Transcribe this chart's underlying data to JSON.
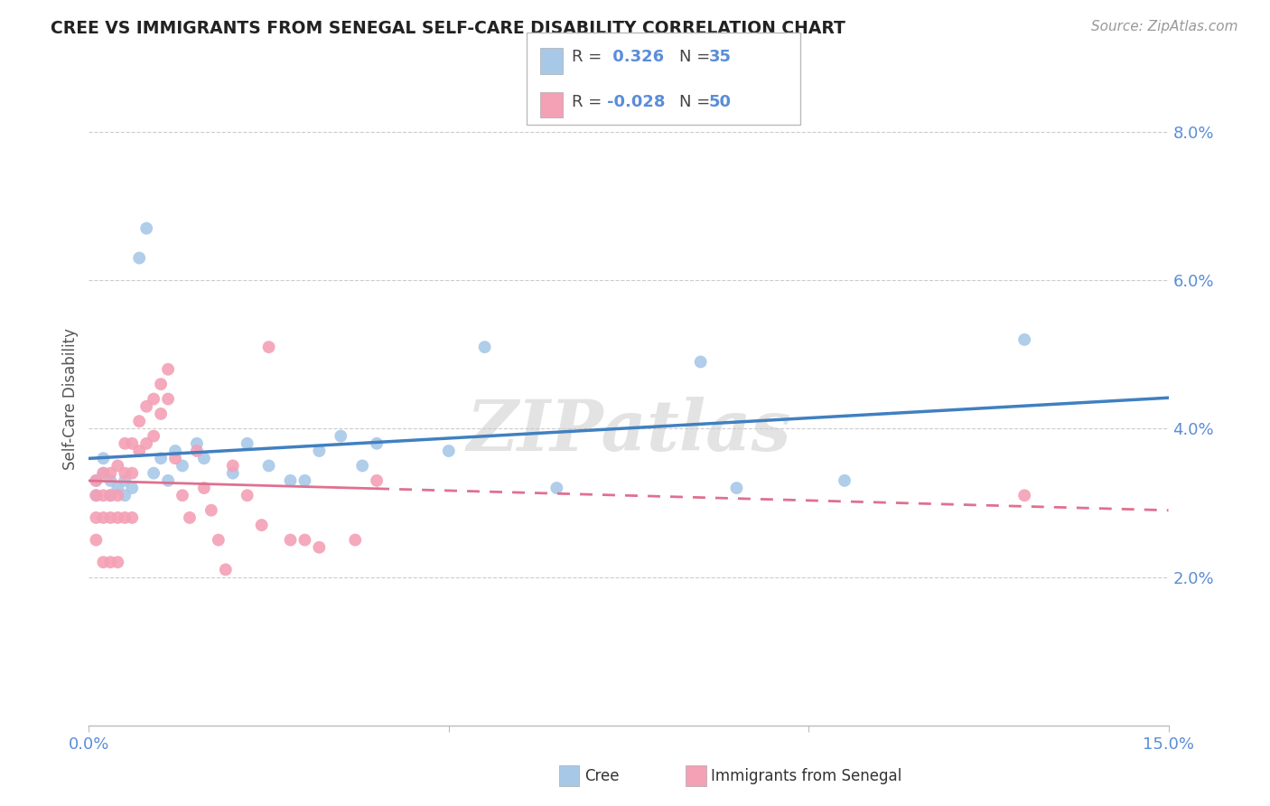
{
  "title": "CREE VS IMMIGRANTS FROM SENEGAL SELF-CARE DISABILITY CORRELATION CHART",
  "source": "Source: ZipAtlas.com",
  "ylabel": "Self-Care Disability",
  "watermark": "ZIPatlas",
  "cree_R": 0.326,
  "cree_N": 35,
  "senegal_R": -0.028,
  "senegal_N": 50,
  "xlim": [
    0.0,
    0.15
  ],
  "ylim": [
    0.0,
    0.088
  ],
  "cree_color": "#A8C8E8",
  "senegal_color": "#F4A0B5",
  "cree_line_color": "#4080C0",
  "senegal_line_color": "#E07090",
  "bg_color": "#FFFFFF",
  "grid_color": "#CCCCCC",
  "cree_x": [
    0.001,
    0.001,
    0.002,
    0.002,
    0.003,
    0.003,
    0.004,
    0.005,
    0.005,
    0.006,
    0.007,
    0.008,
    0.009,
    0.01,
    0.011,
    0.012,
    0.013,
    0.015,
    0.016,
    0.02,
    0.022,
    0.025,
    0.028,
    0.03,
    0.032,
    0.035,
    0.038,
    0.04,
    0.05,
    0.055,
    0.065,
    0.085,
    0.09,
    0.105,
    0.13
  ],
  "cree_y": [
    0.033,
    0.031,
    0.036,
    0.034,
    0.033,
    0.031,
    0.032,
    0.033,
    0.031,
    0.032,
    0.063,
    0.067,
    0.034,
    0.036,
    0.033,
    0.037,
    0.035,
    0.038,
    0.036,
    0.034,
    0.038,
    0.035,
    0.033,
    0.033,
    0.037,
    0.039,
    0.035,
    0.038,
    0.037,
    0.051,
    0.032,
    0.049,
    0.032,
    0.033,
    0.052
  ],
  "senegal_x": [
    0.001,
    0.001,
    0.001,
    0.001,
    0.002,
    0.002,
    0.002,
    0.002,
    0.003,
    0.003,
    0.003,
    0.003,
    0.004,
    0.004,
    0.004,
    0.004,
    0.005,
    0.005,
    0.005,
    0.006,
    0.006,
    0.006,
    0.007,
    0.007,
    0.008,
    0.008,
    0.009,
    0.009,
    0.01,
    0.01,
    0.011,
    0.011,
    0.012,
    0.013,
    0.014,
    0.015,
    0.016,
    0.017,
    0.018,
    0.019,
    0.02,
    0.022,
    0.024,
    0.025,
    0.028,
    0.03,
    0.032,
    0.037,
    0.04,
    0.13
  ],
  "senegal_y": [
    0.033,
    0.031,
    0.028,
    0.025,
    0.034,
    0.031,
    0.028,
    0.022,
    0.034,
    0.031,
    0.028,
    0.022,
    0.035,
    0.031,
    0.028,
    0.022,
    0.038,
    0.034,
    0.028,
    0.038,
    0.034,
    0.028,
    0.041,
    0.037,
    0.043,
    0.038,
    0.044,
    0.039,
    0.046,
    0.042,
    0.048,
    0.044,
    0.036,
    0.031,
    0.028,
    0.037,
    0.032,
    0.029,
    0.025,
    0.021,
    0.035,
    0.031,
    0.027,
    0.051,
    0.025,
    0.025,
    0.024,
    0.025,
    0.033,
    0.031
  ],
  "legend_R1_label": "R = ",
  "legend_R1_val": " 0.326",
  "legend_N1_label": "N = ",
  "legend_N1_val": "35",
  "legend_R2_label": "R = ",
  "legend_R2_val": "-0.028",
  "legend_N2_label": "N = ",
  "legend_N2_val": "50"
}
